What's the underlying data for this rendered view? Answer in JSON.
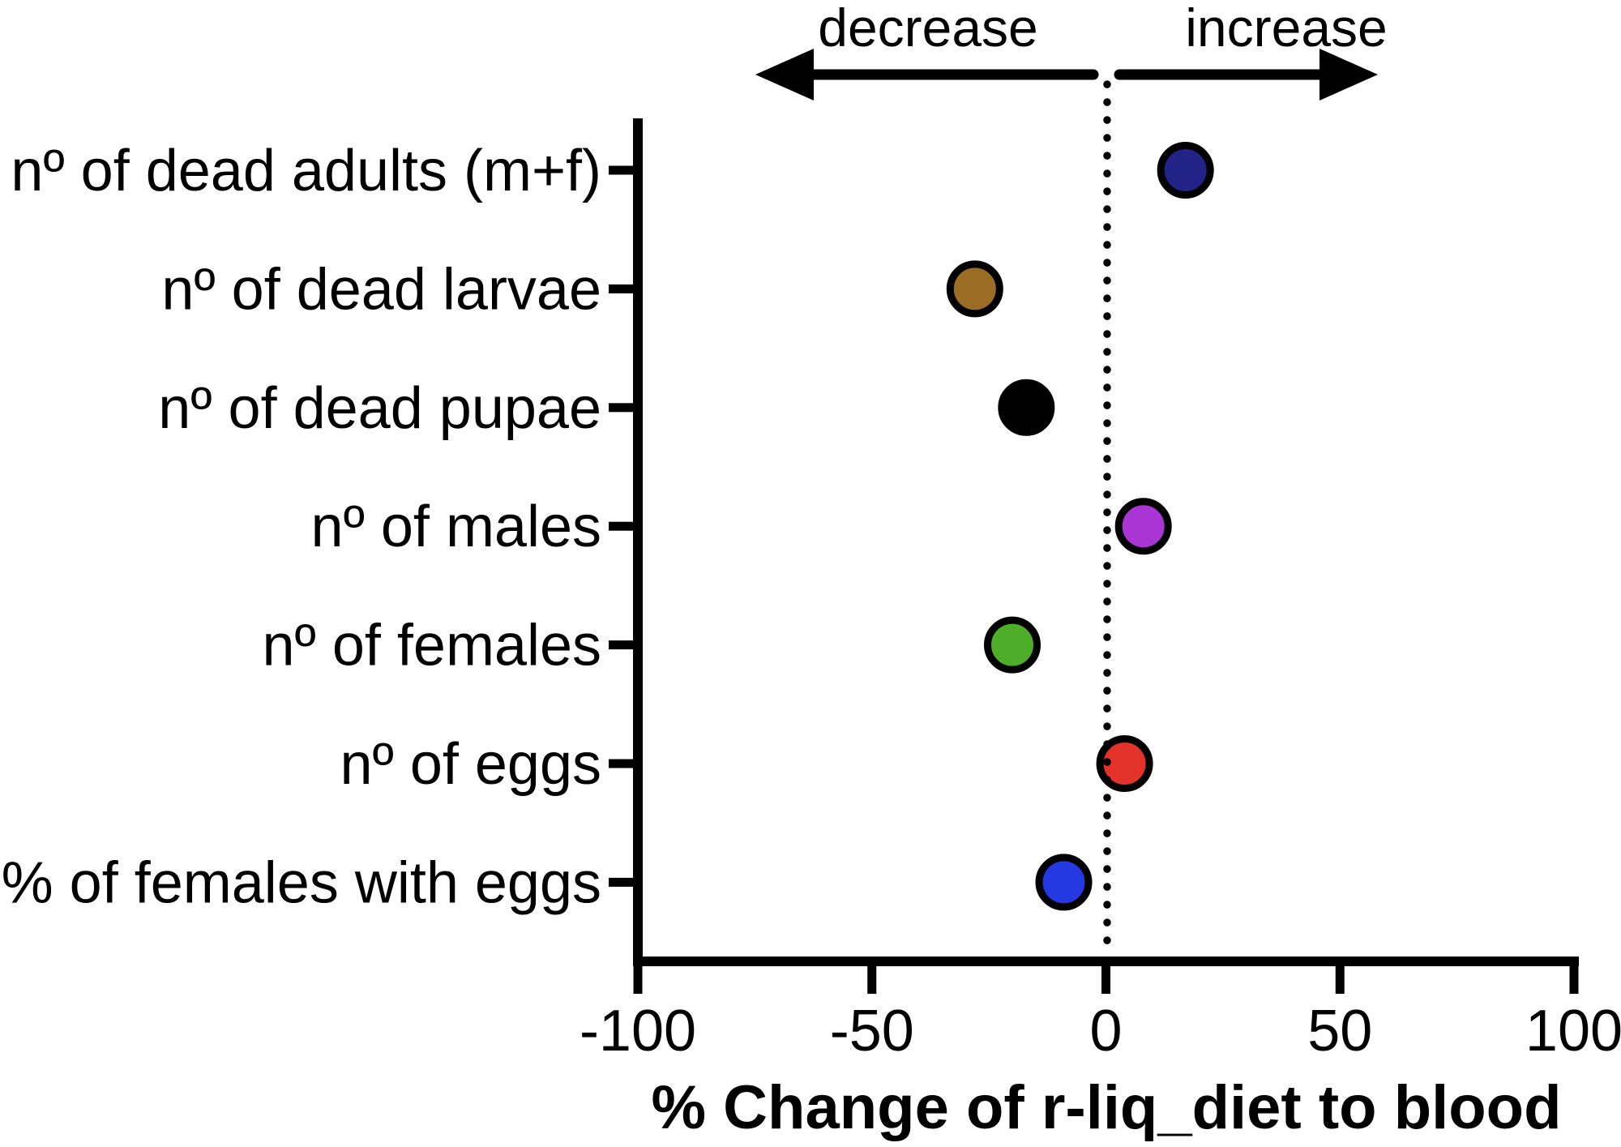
{
  "chart_data": {
    "type": "scatter",
    "variant": "horizontal-dot-plot",
    "categories": [
      "nº of dead adults (m+f)",
      "nº of dead larvae",
      "nº of dead pupae",
      "nº of males",
      "nº of females",
      "nº of eggs",
      "% of females with eggs"
    ],
    "values": [
      17,
      -28,
      -17,
      8,
      -20,
      4,
      -9
    ],
    "colors": [
      "#212387",
      "#9a6c24",
      "#000000",
      "#a935d5",
      "#4daf27",
      "#e23229",
      "#2439e2"
    ],
    "title": "",
    "xlabel": "% Change of r-liq_diet to blood",
    "ylabel": "",
    "xlim": [
      -100,
      100
    ],
    "xticks": [
      -100,
      -50,
      0,
      50,
      100
    ],
    "zero_reference_line": 0,
    "annotations": {
      "left": "decrease",
      "right": "increase"
    },
    "legend_position": "none",
    "grid": false,
    "marker": {
      "shape": "circle",
      "outline_color": "#000000"
    }
  }
}
